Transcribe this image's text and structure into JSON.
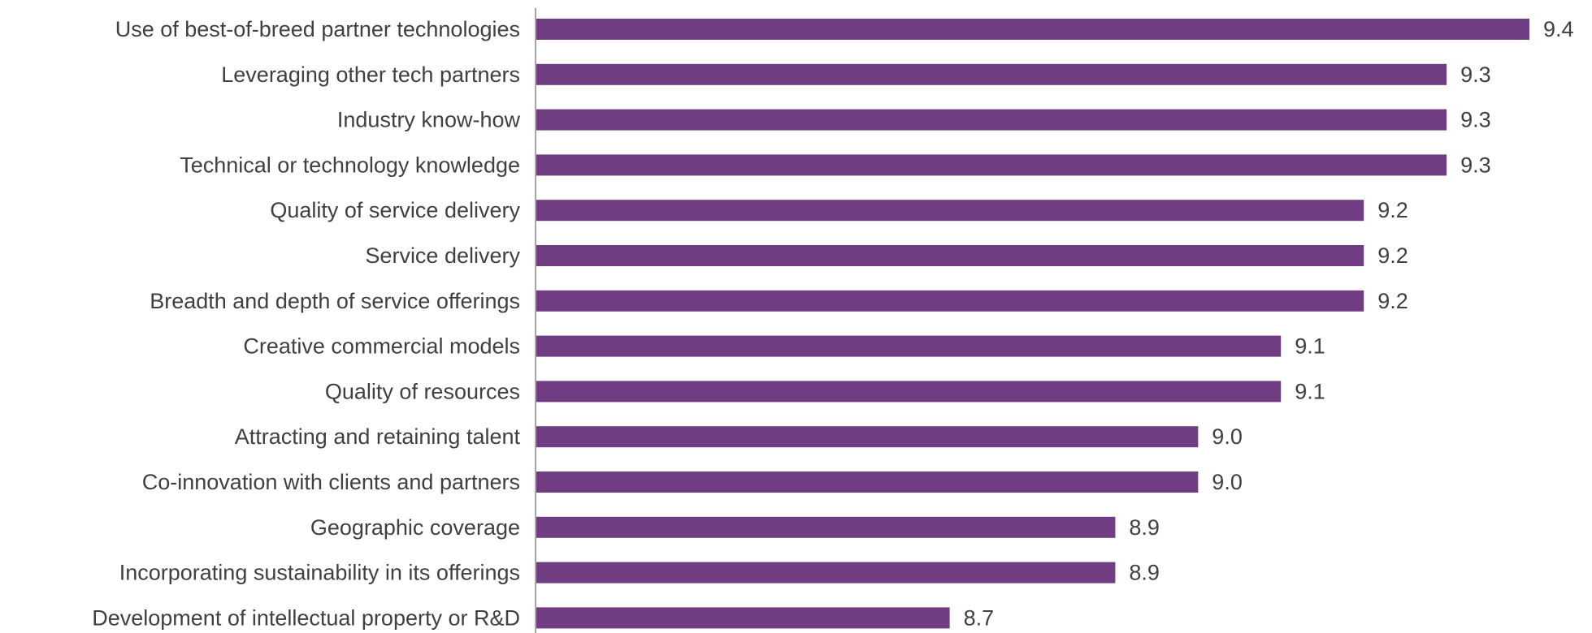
{
  "chart_data": {
    "type": "bar",
    "orientation": "horizontal",
    "title": "",
    "xlabel": "",
    "ylabel": "",
    "categories": [
      "Use of best-of-breed partner technologies",
      "Leveraging other tech partners",
      "Industry know-how",
      "Technical or technology knowledge",
      "Quality of service delivery",
      "Service delivery",
      "Breadth and depth of service offerings",
      "Creative commercial models",
      "Quality of resources",
      "Attracting and retaining talent",
      "Co-innovation with clients and partners",
      "Geographic coverage",
      "Incorporating sustainability in its offerings",
      "Development of intellectual property or R&D"
    ],
    "values": [
      9.4,
      9.3,
      9.3,
      9.3,
      9.2,
      9.2,
      9.2,
      9.1,
      9.1,
      9.0,
      9.0,
      8.9,
      8.9,
      8.7
    ],
    "value_labels": [
      "9.4",
      "9.3",
      "9.3",
      "9.3",
      "9.2",
      "9.2",
      "9.2",
      "9.1",
      "9.1",
      "9.0",
      "9.0",
      "8.9",
      "8.9",
      "8.7"
    ],
    "xlim": [
      8.2,
      9.4
    ],
    "grid": false,
    "legend": "none",
    "bar_color": "#703c82",
    "axis_color": "#a6a6a6",
    "text_color": "#404040"
  }
}
